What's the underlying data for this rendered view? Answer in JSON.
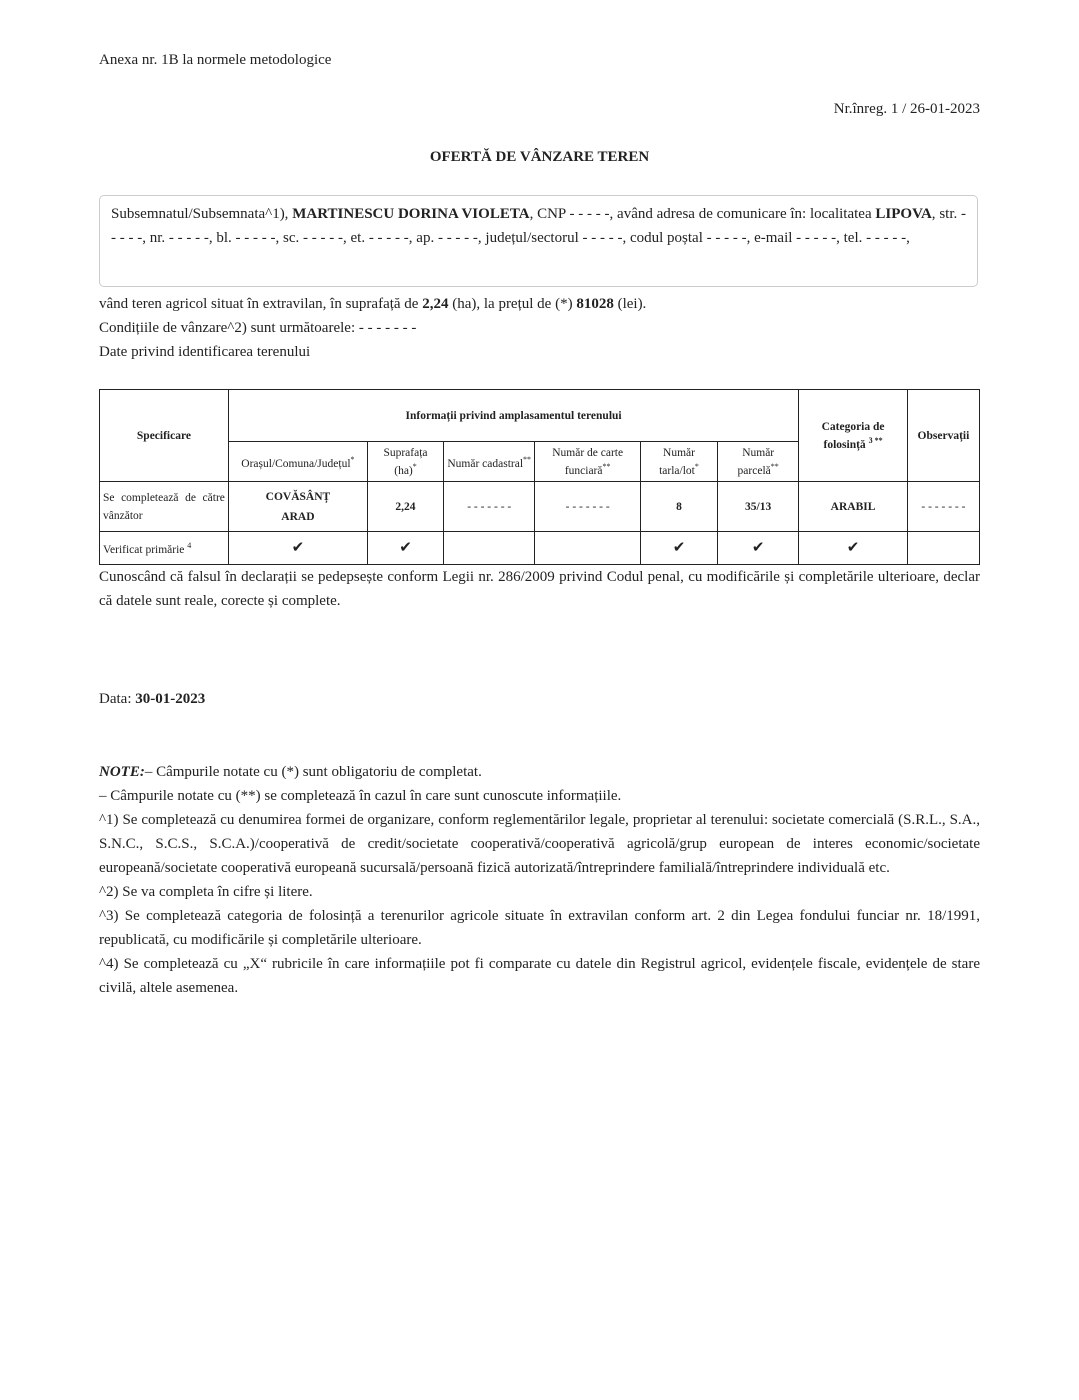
{
  "header": {
    "annex": "Anexa nr. 1B la normele metodologice",
    "registration": "Nr.înreg. 1 / 26-01-2023",
    "title": "OFERTĂ DE VÂNZARE TEREN"
  },
  "declarant": {
    "p1": "Subsemnatul/Subsemnata^1), ",
    "name": "MARTINESCU DORINA VIOLETA",
    "p2": ", CNP - - - - -, având adresa de comunicare în: localitatea ",
    "locality": "LIPOVA",
    "p3": ", str. - - - - -, nr. - - - - -, bl. - - - - -, sc. - - - - -, et. - - - - -, ap. - - - - -, județul/sectorul - - - - -, codul poștal - - - - -, e-mail - - - - -, tel. - - - - -,"
  },
  "offer": {
    "s1": "vând teren agricol situat în extravilan, în suprafață de ",
    "area": "2,24",
    "s2": " (ha), la prețul de (*) ",
    "price": "81028",
    "s3": " (lei).",
    "conditions": "Condițiile de vânzare^2) sunt următoarele: - - - - - - -",
    "identification": "Date privind identificarea terenului"
  },
  "table": {
    "h_spec": "Specificare",
    "h_info": "Informații privind amplasamentul terenului",
    "h_cat": "Categoria de folosință",
    "h_cat_sup": "3 **",
    "h_obs": "Observații",
    "sub": [
      {
        "l": "Orașul/Comuna/Județul",
        "s": "*"
      },
      {
        "l": "Suprafața (ha)",
        "s": "*"
      },
      {
        "l": "Număr cadastral",
        "s": "**"
      },
      {
        "l": "Număr de carte funciară",
        "s": "**"
      },
      {
        "l": "Număr tarla/lot",
        "s": "*"
      },
      {
        "l": "Număr parcelă",
        "s": "**"
      }
    ],
    "row1": {
      "label": "Se completează de către vânzător",
      "loc1": "COVĂSÂNȚ",
      "loc2": "ARAD",
      "area": "2,24",
      "cadastral": "- - - - - - -",
      "cf": "- - - - - - -",
      "tarla": "8",
      "parcela": "35/13",
      "cat": "ARABIL",
      "obs": "- - - - - - -"
    },
    "row2": {
      "label": "Verificat primărie",
      "sup": "4",
      "check": "✔"
    }
  },
  "declaration": "Cunoscând că falsul în declarații se pedepsește conform Legii nr. 286/2009 privind Codul penal, cu modificările și completările ulterioare, declar că datele sunt reale, corecte și complete.",
  "date": {
    "label": "Data: ",
    "value": "30-01-2023"
  },
  "notes": {
    "label": "NOTE:",
    "n0": "– Câmpurile notate cu (*) sunt obligatoriu de completat.",
    "n1": "– Câmpurile notate cu (**) se completează în cazul în care sunt cunoscute informațiile.",
    "n2": "^1) Se completează cu denumirea formei de organizare, conform reglementărilor legale, proprietar al terenului: societate comercială (S.R.L., S.A., S.N.C., S.C.S., S.C.A.)/cooperativă de credit/societate cooperativă/cooperativă agricolă/grup european de interes economic/societate europeană/societate cooperativă europeană sucursală/persoană fizică autorizată/întreprindere familială/întreprindere individuală etc.",
    "n3": "^2) Se va completa în cifre și litere.",
    "n4": "^3) Se completează categoria de folosință a terenurilor agricole situate în extravilan conform art. 2 din Legea fondului funciar nr. 18/1991, republicată, cu modificările și completările ulterioare.",
    "n5": "^4) Se completează cu „X“ rubricile în care informațiile pot fi comparate cu datele din Registrul agricol, evidențele fiscale, evidențele de stare civilă, altele asemenea."
  }
}
